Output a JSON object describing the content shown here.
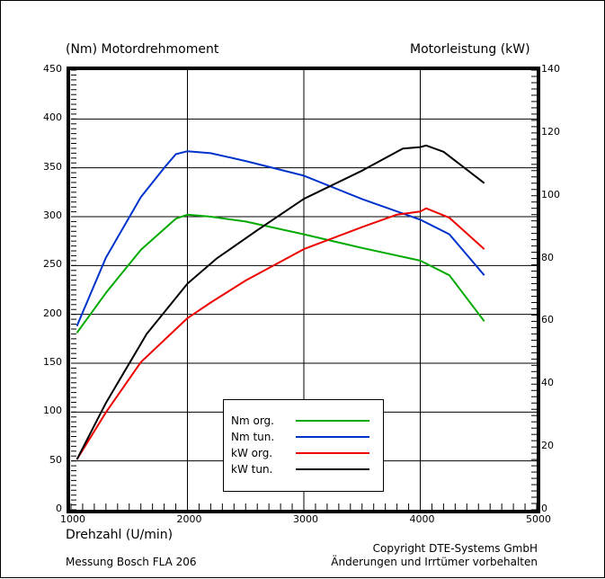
{
  "chart_data": {
    "type": "line",
    "title_left": "(Nm)  Motordrehmoment",
    "title_right": "Motorleistung  (kW)",
    "xlabel": "Drehzahl  (U/min)",
    "ylabel": "(Nm)  Motordrehmoment",
    "y2label": "Motorleistung  (kW)",
    "xlim": [
      1000,
      5000
    ],
    "ylim": [
      0,
      450
    ],
    "y2lim": [
      0,
      140
    ],
    "xticks": [
      1000,
      2000,
      3000,
      4000,
      5000
    ],
    "yticks": [
      0,
      50,
      100,
      150,
      200,
      250,
      300,
      350,
      400,
      450
    ],
    "y2ticks": [
      0,
      20,
      40,
      60,
      80,
      100,
      120,
      140
    ],
    "grid": true,
    "legend_position": "lower center",
    "series": [
      {
        "name": "Nm org.",
        "axis": "left",
        "color": "#00aa00",
        "x": [
          1050,
          1300,
          1600,
          1900,
          2000,
          2200,
          2500,
          3000,
          3500,
          4000,
          4250,
          4550
        ],
        "values": [
          181,
          222,
          266,
          298,
          302,
          300,
          295,
          282,
          268,
          255,
          240,
          193
        ]
      },
      {
        "name": "Nm tun.",
        "axis": "left",
        "color": "#0033cc",
        "x": [
          1050,
          1300,
          1600,
          1800,
          1900,
          2000,
          2200,
          2500,
          3000,
          3500,
          4000,
          4250,
          4550
        ],
        "values": [
          188,
          258,
          320,
          350,
          364,
          367,
          365,
          357,
          342,
          318,
          297,
          282,
          240
        ]
      },
      {
        "name": "kW org.",
        "axis": "right",
        "color": "#ee0000",
        "x": [
          1050,
          1300,
          1600,
          2000,
          2200,
          2500,
          3000,
          3500,
          3800,
          4000,
          4050,
          4250,
          4550
        ],
        "values": [
          16,
          31,
          47,
          61,
          66,
          73,
          83,
          90,
          94,
          95,
          96,
          93,
          83
        ]
      },
      {
        "name": "kW tun.",
        "axis": "right",
        "color": "#000000",
        "x": [
          1050,
          1300,
          1650,
          2000,
          2250,
          2600,
          3000,
          3500,
          3850,
          4000,
          4050,
          4200,
          4550
        ],
        "values": [
          16,
          34,
          56,
          72,
          80,
          89,
          99,
          108,
          115,
          115.5,
          116,
          114,
          104
        ]
      }
    ]
  },
  "labels": {
    "title_left": "(Nm)  Motordrehmoment",
    "title_right": "Motorleistung  (kW)",
    "xlabel": "Drehzahl  (U/min)",
    "footer_left": "Messung Bosch FLA 206",
    "footer_right_1": "Copyright  DTE-Systems GmbH",
    "footer_right_2": "Änderungen und Irrtümer vorbehalten"
  },
  "legend": [
    {
      "label": "Nm org.",
      "color": "#00aa00"
    },
    {
      "label": "Nm tun.",
      "color": "#0033cc"
    },
    {
      "label": "kW org.",
      "color": "#ee0000"
    },
    {
      "label": "kW tun.",
      "color": "#000000"
    }
  ]
}
